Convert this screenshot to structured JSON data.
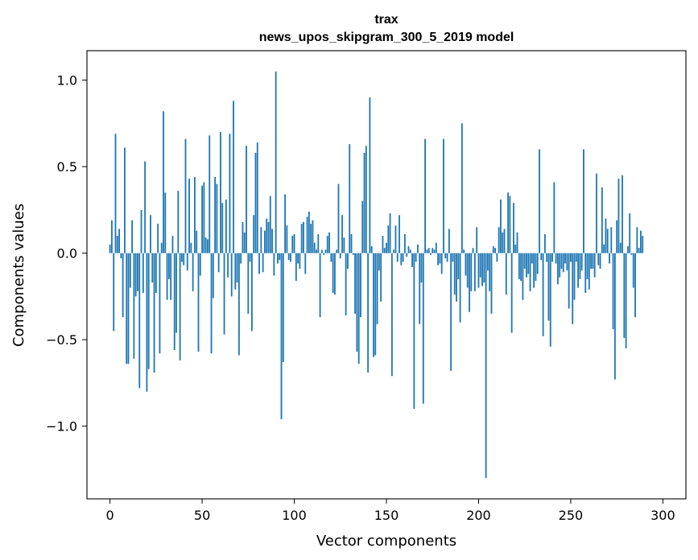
{
  "chart_data": {
    "type": "bar",
    "title_line1": "trax",
    "title_line2": "news_upos_skipgram_300_5_2019 model",
    "xlabel": "Vector components",
    "ylabel": "Components values",
    "xlim": [
      -12.5,
      312.5
    ],
    "ylim": [
      -1.42,
      1.17
    ],
    "xticks": [
      0,
      50,
      100,
      150,
      200,
      250,
      300
    ],
    "xtick_labels": [
      "0",
      "50",
      "100",
      "150",
      "200",
      "250",
      "300"
    ],
    "yticks": [
      -1.0,
      -0.5,
      0.0,
      0.5,
      1.0
    ],
    "ytick_labels": [
      "−1.0",
      "−0.5",
      "0.0",
      "0.5",
      "1.0"
    ],
    "color": "#1f77b4",
    "values": [
      0.05,
      0.19,
      -0.45,
      0.69,
      0.1,
      0.14,
      -0.03,
      -0.37,
      0.61,
      -0.64,
      -0.64,
      -0.2,
      0.19,
      -0.61,
      -0.25,
      -0.22,
      -0.78,
      0.25,
      -0.23,
      0.53,
      -0.8,
      -0.67,
      0.22,
      -0.17,
      -0.69,
      -0.23,
      0.17,
      -0.58,
      0.06,
      0.82,
      0.35,
      -0.27,
      -0.15,
      -0.27,
      0.1,
      -0.56,
      -0.46,
      0.36,
      -0.62,
      -0.05,
      -0.07,
      0.66,
      -0.1,
      0.43,
      0.06,
      -0.22,
      0.44,
      0.13,
      -0.57,
      -0.13,
      0.39,
      0.41,
      0.09,
      0.08,
      0.68,
      -0.58,
      -0.26,
      0.44,
      0.4,
      -0.11,
      0.7,
      0.29,
      -0.47,
      0.31,
      -0.14,
      0.69,
      -0.25,
      0.88,
      -0.21,
      -0.17,
      -0.59,
      -0.06,
      0.18,
      0.12,
      0.62,
      -0.35,
      -0.05,
      -0.45,
      0.22,
      0.58,
      0.64,
      -0.12,
      0.15,
      -0.11,
      0.13,
      0.2,
      0.18,
      0.33,
      0.14,
      -0.13,
      1.05,
      -0.06,
      -0.04,
      -0.96,
      -0.63,
      0.34,
      0.16,
      -0.04,
      -0.05,
      0.1,
      0.11,
      -0.16,
      -0.06,
      -0.09,
      0.17,
      0.18,
      -0.12,
      0.21,
      0.24,
      0.17,
      0.19,
      0.06,
      0.02,
      0.11,
      -0.37,
      0.02,
      -0.01,
      0.02,
      0.1,
      0.12,
      -0.05,
      -0.23,
      -0.24,
      0.02,
      0.4,
      -0.03,
      0.22,
      0.09,
      -0.36,
      -0.09,
      0.63,
      0.11,
      -0.01,
      -0.35,
      -0.57,
      -0.64,
      -0.37,
      0.3,
      0.58,
      0.62,
      -0.69,
      0.9,
      0.04,
      -0.6,
      -0.59,
      -0.41,
      -0.1,
      -0.28,
      0.1,
      0.03,
      0.06,
      0.16,
      0.23,
      -0.71,
      0.02,
      0.16,
      -0.05,
      0.22,
      -0.07,
      -0.05,
      0.11,
      -0.02,
      0.04,
      0.02,
      -0.08,
      -0.9,
      -0.05,
      0.05,
      -0.41,
      -0.17,
      -0.87,
      0.66,
      0.02,
      0.03,
      -0.01,
      0.03,
      0.02,
      0.06,
      -0.07,
      -0.06,
      -0.12,
      0.66,
      -0.03,
      -0.05,
      0.14,
      -0.68,
      -0.05,
      -0.24,
      -0.28,
      -0.15,
      -0.4,
      0.75,
      0.02,
      -0.13,
      -0.2,
      -0.34,
      -0.22,
      0.03,
      -0.22,
      0.15,
      -0.2,
      -0.14,
      -0.19,
      -0.17,
      -1.3,
      -0.1,
      -0.22,
      -0.35,
      0.04,
      0.03,
      -0.05,
      0.15,
      0.31,
      0.12,
      0.14,
      -0.24,
      0.35,
      0.33,
      -0.46,
      0.29,
      0.05,
      0.12,
      -0.15,
      -0.16,
      -0.27,
      -0.09,
      -0.14,
      -0.12,
      -0.22,
      -0.06,
      -0.2,
      -0.16,
      -0.12,
      0.6,
      -0.04,
      -0.48,
      0.11,
      -0.05,
      -0.39,
      -0.54,
      -0.05,
      0.41,
      -0.06,
      -0.18,
      -0.14,
      -0.09,
      -0.11,
      -0.06,
      -0.1,
      -0.32,
      -0.05,
      -0.41,
      -0.27,
      -0.05,
      -0.2,
      -0.15,
      -0.1,
      0.6,
      -0.23,
      -0.15,
      -0.21,
      -0.09,
      -0.09,
      -0.14,
      0.46,
      -0.07,
      -0.09,
      0.38,
      0.05,
      0.2,
      0.14,
      -0.06,
      0.15,
      -0.44,
      -0.73,
      0.19,
      0.43,
      0.06,
      0.45,
      -0.49,
      -0.55,
      0.04,
      0.23,
      -0.01,
      -0.2,
      -0.37,
      0.15,
      0.03,
      0.13,
      0.1
    ]
  }
}
